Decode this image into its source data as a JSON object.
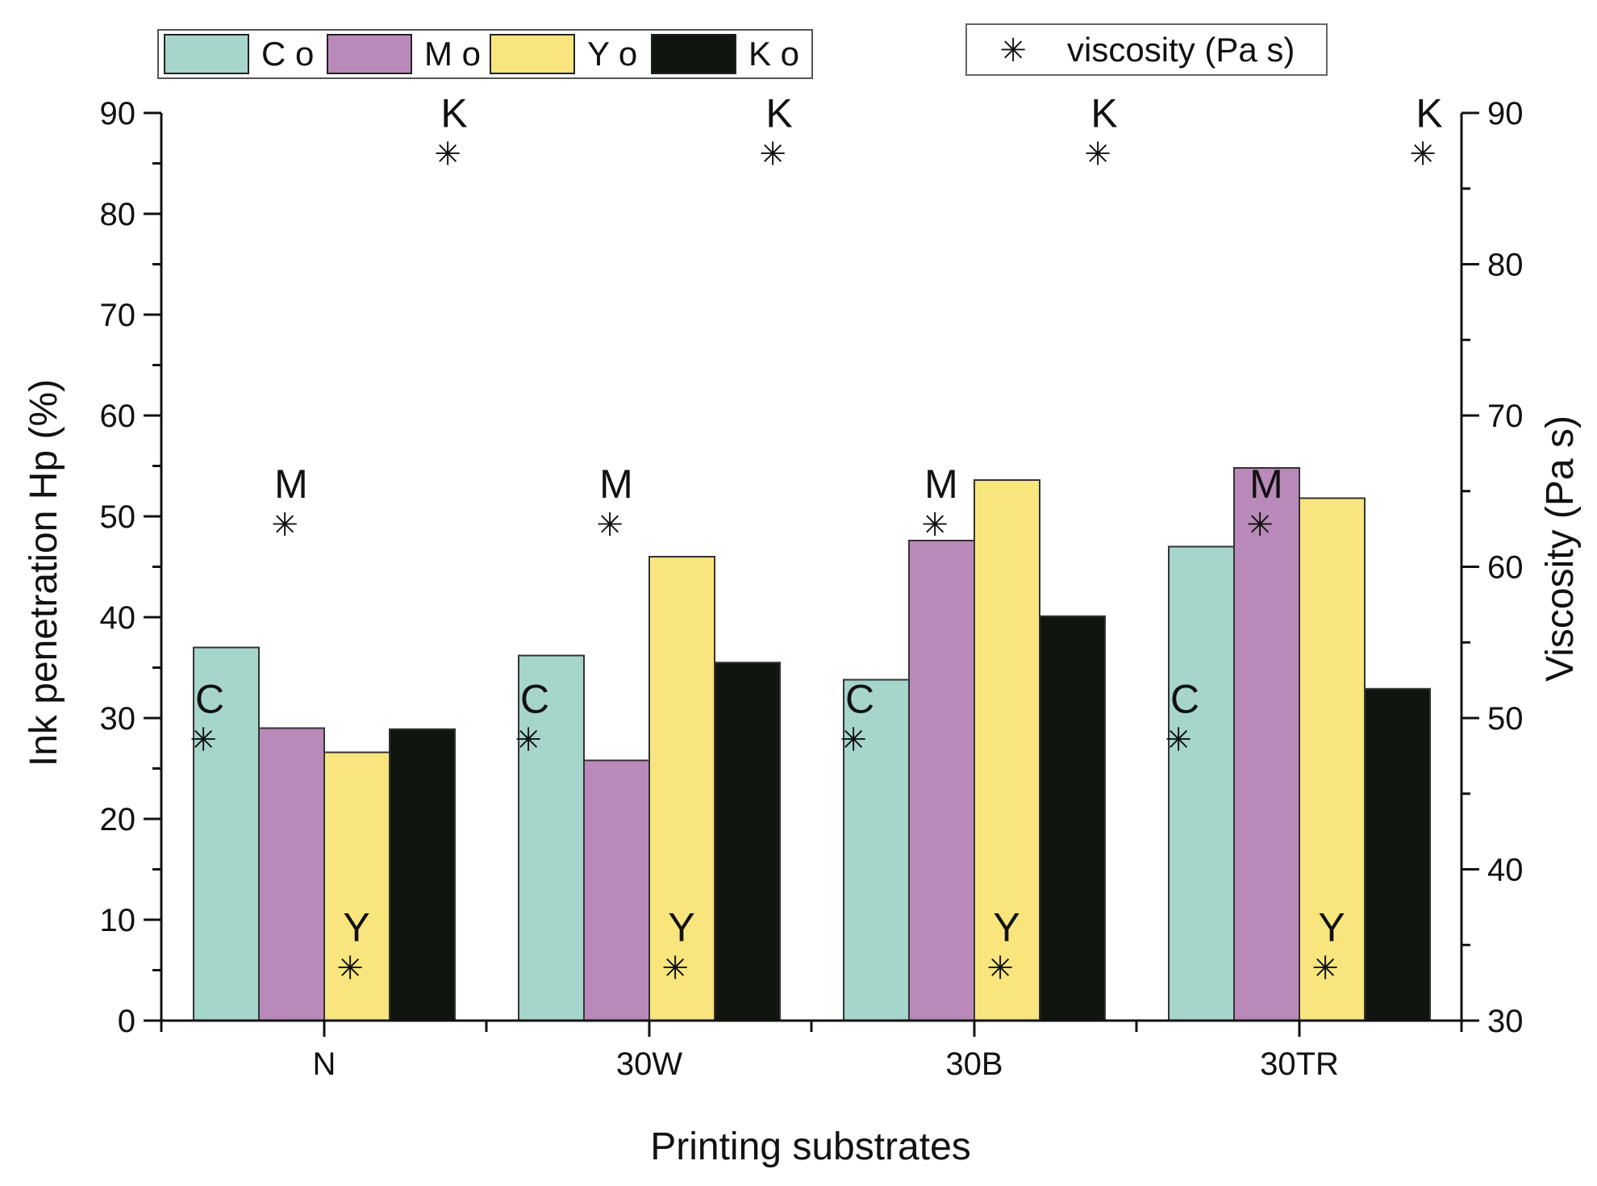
{
  "chart_data": {
    "type": "bar",
    "xlabel": "Printing substrates",
    "ylabel": "Ink penetration Hp (%)",
    "y2label": "Viscosity (Pa s)",
    "categories": [
      "N",
      "30W",
      "30B",
      "30TR"
    ],
    "ylim": [
      0,
      90
    ],
    "y2lim": [
      30,
      90
    ],
    "yticks": [
      0,
      10,
      20,
      30,
      40,
      50,
      60,
      70,
      80,
      90
    ],
    "y2ticks": [
      30,
      40,
      50,
      60,
      70,
      80,
      90
    ],
    "series": [
      {
        "name": "C o",
        "key": "C",
        "color": "#a6d5cc",
        "values": [
          37.0,
          36.2,
          33.8,
          47.0
        ]
      },
      {
        "name": "M o",
        "key": "M",
        "color": "#b98ab9",
        "values": [
          29.0,
          25.8,
          47.6,
          54.8
        ]
      },
      {
        "name": "Y o",
        "key": "Y",
        "color": "#f8e57e",
        "values": [
          26.6,
          46.0,
          53.6,
          51.8
        ]
      },
      {
        "name": "K o",
        "key": "K",
        "color": "#101510",
        "values": [
          28.9,
          35.5,
          40.1,
          32.9
        ]
      }
    ],
    "viscosity": {
      "legend": "viscosity (Pa s)",
      "marker": "✳",
      "labels": [
        "C",
        "M",
        "Y",
        "K"
      ],
      "values": [
        48.6,
        62.8,
        33.5,
        87.3
      ]
    },
    "legend_position": "top",
    "grid": false
  }
}
